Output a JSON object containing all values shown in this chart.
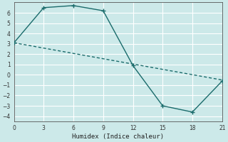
{
  "xlabel": "Humidex (Indice chaleur)",
  "background_color": "#cce9e9",
  "grid_color": "#b8d8d8",
  "line_color": "#1a6b6b",
  "line1_x": [
    0,
    3,
    6,
    9,
    12,
    15,
    18,
    21
  ],
  "line1_y": [
    3.1,
    6.5,
    6.7,
    6.2,
    0.9,
    -3.0,
    -3.6,
    -0.6
  ],
  "line2_x": [
    0,
    21
  ],
  "line2_y": [
    3.1,
    -0.5
  ],
  "xlim": [
    0,
    21
  ],
  "ylim": [
    -4.5,
    7.0
  ],
  "xticks": [
    0,
    3,
    6,
    9,
    12,
    15,
    18,
    21
  ],
  "yticks": [
    -4,
    -3,
    -2,
    -1,
    0,
    1,
    2,
    3,
    4,
    5,
    6
  ],
  "marker_style": "+",
  "marker_size": 4,
  "line_width": 1.0,
  "font_size_tick": 5.5,
  "font_size_xlabel": 6.5
}
